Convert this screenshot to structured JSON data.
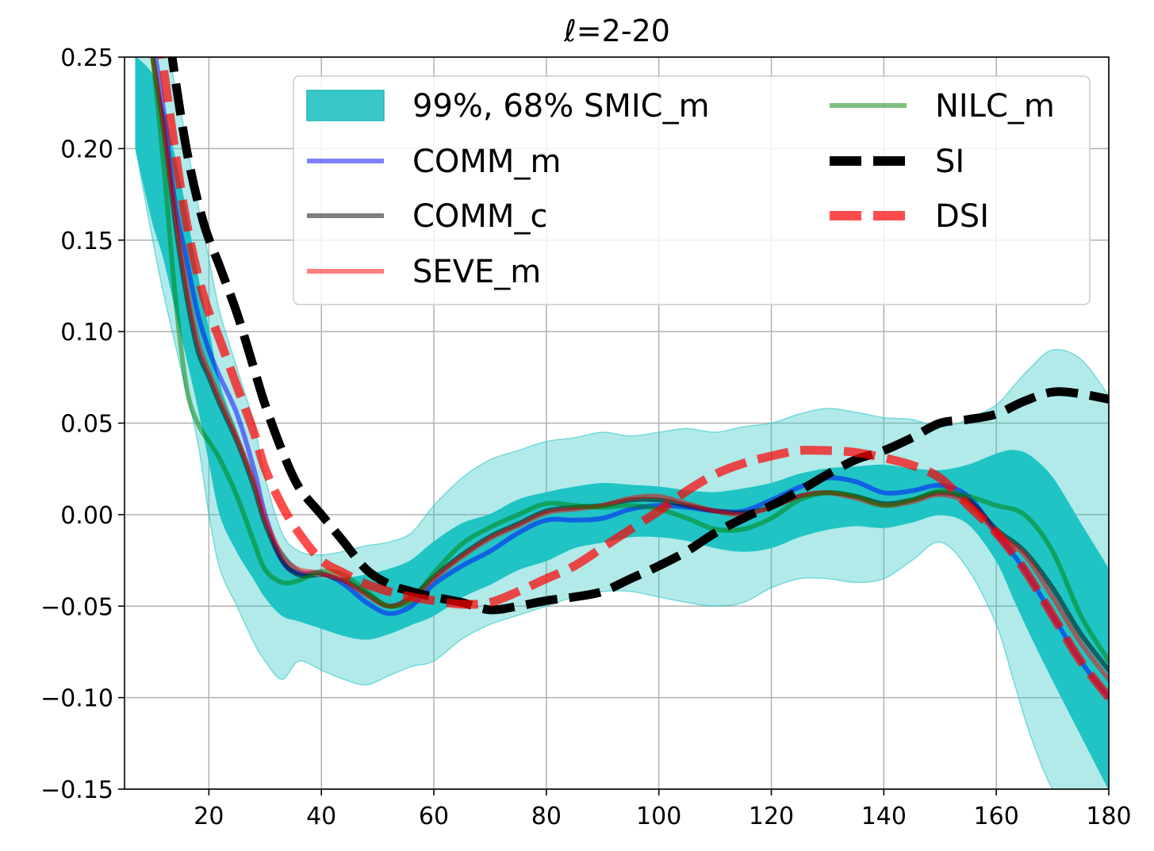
{
  "chart_data": {
    "type": "line",
    "title": "ℓ=2-20",
    "xlabel": "",
    "ylabel": "",
    "xlim": [
      5,
      180
    ],
    "ylim": [
      -0.15,
      0.25
    ],
    "grid": true,
    "x_ticks": [
      20,
      40,
      60,
      80,
      100,
      120,
      140,
      160,
      180
    ],
    "x_tick_labels": [
      "20",
      "40",
      "60",
      "80",
      "100",
      "120",
      "140",
      "160",
      "180"
    ],
    "y_ticks": [
      -0.15,
      -0.1,
      -0.05,
      0.0,
      0.05,
      0.1,
      0.15,
      0.2,
      0.25
    ],
    "y_tick_labels": [
      "−0.15",
      "−0.10",
      "−0.05",
      "0.00",
      "0.05",
      "0.10",
      "0.15",
      "0.20",
      "0.25"
    ],
    "legend_position": "top-right",
    "bands": [
      {
        "name": "99%, 68% SMIC_m",
        "level": "99%",
        "color": "#2ec5c5",
        "opacity": 0.37,
        "x": [
          7,
          10,
          12,
          15,
          18,
          20,
          22,
          25,
          28,
          30,
          33,
          36,
          40,
          44,
          48,
          52,
          56,
          60,
          65,
          70,
          75,
          80,
          85,
          90,
          95,
          100,
          105,
          110,
          115,
          120,
          125,
          130,
          135,
          140,
          145,
          150,
          155,
          160,
          163,
          166,
          170,
          175,
          180
        ],
        "upper": [
          0.27,
          0.27,
          0.26,
          0.22,
          0.17,
          0.14,
          0.11,
          0.08,
          0.05,
          0.02,
          -0.01,
          -0.02,
          -0.022,
          -0.02,
          -0.017,
          -0.015,
          -0.01,
          0.005,
          0.02,
          0.03,
          0.035,
          0.04,
          0.042,
          0.045,
          0.043,
          0.045,
          0.047,
          0.045,
          0.048,
          0.05,
          0.055,
          0.058,
          0.056,
          0.053,
          0.052,
          0.048,
          0.052,
          0.06,
          0.07,
          0.08,
          0.09,
          0.085,
          0.065
        ],
        "lower": [
          0.2,
          0.15,
          0.12,
          0.08,
          0.04,
          0.0,
          -0.03,
          -0.05,
          -0.07,
          -0.08,
          -0.09,
          -0.08,
          -0.085,
          -0.09,
          -0.093,
          -0.088,
          -0.083,
          -0.08,
          -0.068,
          -0.06,
          -0.055,
          -0.05,
          -0.045,
          -0.042,
          -0.042,
          -0.045,
          -0.048,
          -0.05,
          -0.048,
          -0.04,
          -0.035,
          -0.035,
          -0.037,
          -0.035,
          -0.025,
          -0.015,
          -0.03,
          -0.06,
          -0.09,
          -0.12,
          -0.15,
          -0.17,
          -0.19
        ]
      },
      {
        "name": "99%, 68% SMIC_m",
        "level": "68%",
        "color": "#20c4c4",
        "opacity": 1.0,
        "x": [
          7,
          10,
          12,
          15,
          18,
          20,
          22,
          25,
          28,
          30,
          33,
          36,
          40,
          44,
          48,
          52,
          56,
          60,
          65,
          70,
          75,
          80,
          85,
          90,
          95,
          100,
          105,
          110,
          115,
          120,
          125,
          130,
          135,
          140,
          145,
          150,
          155,
          160,
          163,
          166,
          170,
          175,
          180
        ],
        "upper": [
          0.25,
          0.24,
          0.22,
          0.18,
          0.13,
          0.1,
          0.07,
          0.045,
          0.02,
          -0.005,
          -0.02,
          -0.03,
          -0.035,
          -0.035,
          -0.033,
          -0.03,
          -0.025,
          -0.015,
          -0.005,
          0.0,
          0.008,
          0.012,
          0.015,
          0.017,
          0.016,
          0.015,
          0.013,
          0.012,
          0.014,
          0.017,
          0.022,
          0.025,
          0.026,
          0.027,
          0.025,
          0.024,
          0.027,
          0.033,
          0.035,
          0.032,
          0.02,
          -0.005,
          -0.03
        ],
        "lower": [
          0.2,
          0.16,
          0.14,
          0.1,
          0.06,
          0.03,
          0.0,
          -0.02,
          -0.035,
          -0.045,
          -0.055,
          -0.058,
          -0.062,
          -0.066,
          -0.068,
          -0.065,
          -0.06,
          -0.055,
          -0.045,
          -0.038,
          -0.03,
          -0.025,
          -0.018,
          -0.015,
          -0.012,
          -0.012,
          -0.014,
          -0.018,
          -0.02,
          -0.018,
          -0.012,
          -0.008,
          -0.006,
          -0.007,
          -0.004,
          0.0,
          -0.005,
          -0.025,
          -0.045,
          -0.065,
          -0.09,
          -0.12,
          -0.15
        ]
      }
    ],
    "series": [
      {
        "name": "COMM_m",
        "color": "#0000ff",
        "opacity": 0.5,
        "dash": "solid",
        "x": [
          10,
          12,
          14,
          16,
          18,
          20,
          22,
          25,
          28,
          30,
          33,
          36,
          40,
          44,
          48,
          52,
          56,
          60,
          65,
          70,
          75,
          80,
          85,
          90,
          95,
          100,
          105,
          110,
          115,
          120,
          125,
          130,
          135,
          140,
          145,
          150,
          155,
          160,
          165,
          170,
          175,
          180
        ],
        "values": [
          0.26,
          0.22,
          0.17,
          0.14,
          0.11,
          0.09,
          0.075,
          0.055,
          0.025,
          0.0,
          -0.025,
          -0.032,
          -0.032,
          -0.038,
          -0.048,
          -0.054,
          -0.05,
          -0.038,
          -0.028,
          -0.02,
          -0.01,
          -0.003,
          -0.003,
          -0.002,
          0.003,
          0.005,
          0.004,
          0.002,
          0.002,
          0.008,
          0.015,
          0.02,
          0.018,
          0.012,
          0.013,
          0.016,
          0.01,
          -0.01,
          -0.03,
          -0.055,
          -0.08,
          -0.1
        ]
      },
      {
        "name": "COMM_c",
        "color": "#000000",
        "opacity": 0.5,
        "dash": "solid",
        "x": [
          10,
          12,
          14,
          16,
          18,
          20,
          22,
          25,
          28,
          30,
          33,
          36,
          40,
          44,
          48,
          52,
          56,
          60,
          65,
          70,
          75,
          80,
          85,
          90,
          95,
          100,
          105,
          110,
          115,
          120,
          125,
          130,
          135,
          140,
          145,
          150,
          155,
          160,
          165,
          170,
          175,
          180
        ],
        "values": [
          0.25,
          0.21,
          0.16,
          0.12,
          0.09,
          0.075,
          0.06,
          0.04,
          0.015,
          -0.005,
          -0.025,
          -0.033,
          -0.033,
          -0.036,
          -0.043,
          -0.05,
          -0.045,
          -0.034,
          -0.022,
          -0.012,
          -0.005,
          0.002,
          0.004,
          0.005,
          0.008,
          0.008,
          0.005,
          0.002,
          0.001,
          0.004,
          0.01,
          0.012,
          0.01,
          0.006,
          0.008,
          0.012,
          0.008,
          -0.008,
          -0.02,
          -0.04,
          -0.065,
          -0.085
        ]
      },
      {
        "name": "SEVE_m",
        "color": "#ff0000",
        "opacity": 0.5,
        "dash": "solid",
        "x": [
          10,
          12,
          14,
          16,
          18,
          20,
          22,
          25,
          28,
          30,
          33,
          36,
          40,
          44,
          48,
          52,
          56,
          60,
          65,
          70,
          75,
          80,
          85,
          90,
          95,
          100,
          105,
          110,
          115,
          120,
          125,
          130,
          135,
          140,
          145,
          150,
          155,
          160,
          165,
          170,
          175,
          180
        ],
        "values": [
          0.25,
          0.21,
          0.165,
          0.125,
          0.095,
          0.078,
          0.063,
          0.042,
          0.018,
          -0.002,
          -0.022,
          -0.03,
          -0.032,
          -0.036,
          -0.044,
          -0.05,
          -0.046,
          -0.035,
          -0.023,
          -0.013,
          -0.006,
          0.001,
          0.003,
          0.005,
          0.009,
          0.01,
          0.006,
          0.002,
          0.0,
          0.004,
          0.01,
          0.012,
          0.009,
          0.005,
          0.007,
          0.011,
          0.006,
          -0.01,
          -0.022,
          -0.045,
          -0.07,
          -0.09
        ]
      },
      {
        "name": "NILC_m",
        "color": "#008000",
        "opacity": 0.5,
        "dash": "solid",
        "x": [
          10,
          12,
          14,
          16,
          18,
          20,
          22,
          25,
          28,
          30,
          33,
          36,
          40,
          44,
          48,
          52,
          56,
          60,
          65,
          70,
          75,
          80,
          85,
          90,
          95,
          100,
          105,
          110,
          115,
          120,
          125,
          130,
          135,
          140,
          145,
          150,
          155,
          160,
          165,
          170,
          175,
          180
        ],
        "values": [
          0.25,
          0.19,
          0.12,
          0.07,
          0.05,
          0.04,
          0.03,
          0.01,
          -0.015,
          -0.03,
          -0.037,
          -0.036,
          -0.031,
          -0.033,
          -0.042,
          -0.05,
          -0.047,
          -0.032,
          -0.016,
          -0.007,
          0.0,
          0.006,
          0.005,
          0.004,
          0.005,
          0.003,
          -0.002,
          -0.008,
          -0.008,
          -0.002,
          0.008,
          0.012,
          0.01,
          0.005,
          0.008,
          0.013,
          0.01,
          0.005,
          0.0,
          -0.02,
          -0.055,
          -0.08
        ]
      },
      {
        "name": "SI",
        "color": "#000000",
        "opacity": 1.0,
        "dash": "dashed",
        "x": [
          10,
          13,
          16,
          19,
          22,
          25,
          28,
          30,
          33,
          36,
          40,
          44,
          48,
          52,
          56,
          60,
          65,
          70,
          75,
          80,
          85,
          90,
          95,
          100,
          105,
          110,
          115,
          120,
          125,
          130,
          135,
          140,
          145,
          150,
          155,
          160,
          165,
          170,
          175,
          180
        ],
        "values": [
          0.33,
          0.26,
          0.2,
          0.16,
          0.135,
          0.11,
          0.08,
          0.06,
          0.035,
          0.015,
          0.0,
          -0.015,
          -0.03,
          -0.038,
          -0.042,
          -0.045,
          -0.048,
          -0.052,
          -0.05,
          -0.047,
          -0.045,
          -0.042,
          -0.035,
          -0.028,
          -0.02,
          -0.01,
          -0.002,
          0.005,
          0.013,
          0.022,
          0.03,
          0.035,
          0.042,
          0.05,
          0.052,
          0.055,
          0.062,
          0.067,
          0.066,
          0.063
        ]
      },
      {
        "name": "DSI",
        "color": "#ff0000",
        "opacity": 0.7,
        "dash": "dashed",
        "x": [
          10,
          13,
          16,
          19,
          22,
          25,
          28,
          30,
          33,
          36,
          40,
          44,
          48,
          52,
          56,
          60,
          65,
          70,
          75,
          80,
          85,
          90,
          95,
          100,
          105,
          110,
          115,
          120,
          125,
          130,
          135,
          140,
          145,
          150,
          155,
          160,
          165,
          170,
          175,
          180
        ],
        "values": [
          0.29,
          0.22,
          0.16,
          0.12,
          0.095,
          0.07,
          0.045,
          0.025,
          0.005,
          -0.01,
          -0.025,
          -0.032,
          -0.038,
          -0.042,
          -0.045,
          -0.047,
          -0.049,
          -0.048,
          -0.042,
          -0.035,
          -0.028,
          -0.018,
          -0.008,
          0.002,
          0.013,
          0.022,
          0.028,
          0.032,
          0.035,
          0.035,
          0.034,
          0.031,
          0.027,
          0.02,
          0.005,
          -0.01,
          -0.03,
          -0.055,
          -0.08,
          -0.1
        ]
      }
    ],
    "legend": {
      "columns": [
        [
          {
            "label": "99%, 68% SMIC_m",
            "kind": "patch",
            "color": "#2ec5c5"
          },
          {
            "label": "COMM_m",
            "kind": "line",
            "color": "#0000ff",
            "opacity": 0.5
          },
          {
            "label": "COMM_c",
            "kind": "line",
            "color": "#000000",
            "opacity": 0.5
          },
          {
            "label": "SEVE_m",
            "kind": "line",
            "color": "#ff0000",
            "opacity": 0.5
          }
        ],
        [
          {
            "label": "NILC_m",
            "kind": "line",
            "color": "#008000",
            "opacity": 0.5
          },
          {
            "label": "SI",
            "kind": "dash",
            "color": "#000000",
            "opacity": 1.0
          },
          {
            "label": "DSI",
            "kind": "dash",
            "color": "#ff0000",
            "opacity": 0.7
          }
        ]
      ]
    }
  }
}
